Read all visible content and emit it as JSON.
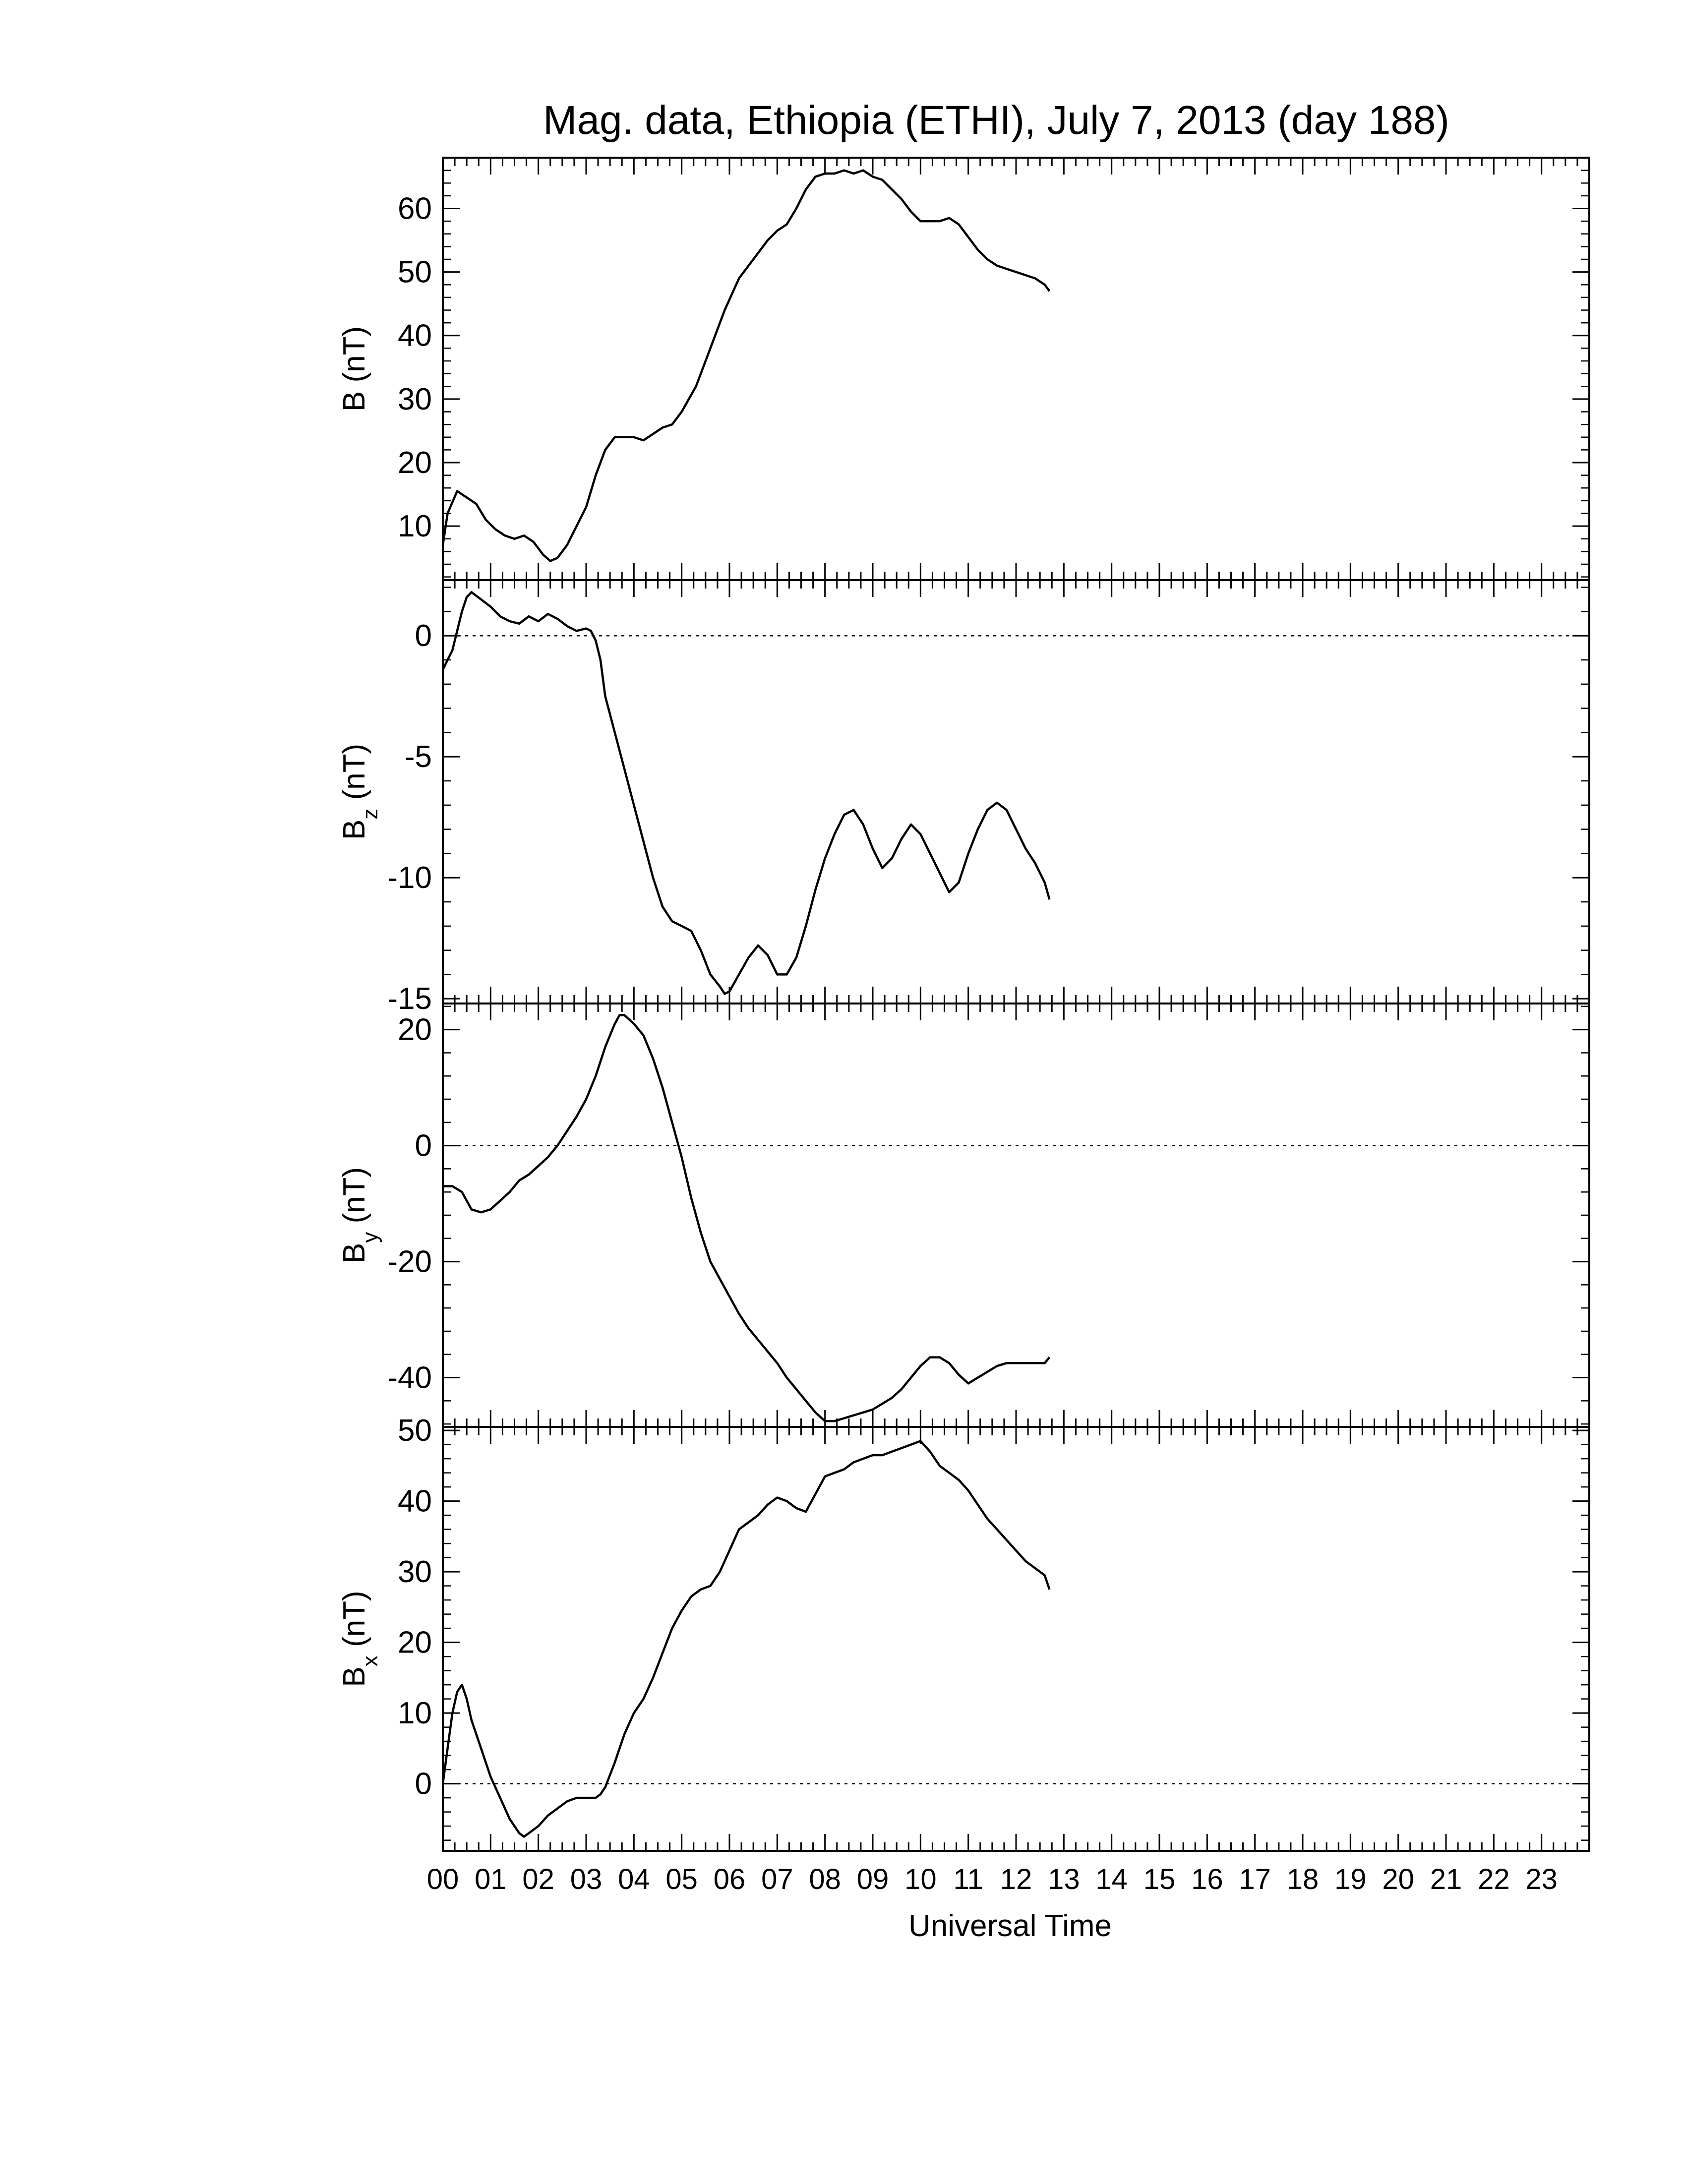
{
  "chart_data": {
    "type": "line",
    "title": "Mag. data, Ethiopia (ETHI), July 7, 2013 (day 188)",
    "xlabel": "Universal Time",
    "xlim": [
      0,
      24
    ],
    "x_tick_labels": [
      "00",
      "01",
      "02",
      "03",
      "04",
      "05",
      "06",
      "07",
      "08",
      "09",
      "10",
      "11",
      "12",
      "13",
      "14",
      "15",
      "16",
      "17",
      "18",
      "19",
      "20",
      "21",
      "22",
      "23"
    ],
    "panels": [
      {
        "id": "B",
        "ylabel_main": "B",
        "ylabel_sub": "",
        "ylabel_unit": "(nT)",
        "ylim": [
          1.5,
          68
        ],
        "yticks": [
          10,
          20,
          30,
          40,
          50,
          60
        ],
        "ytick_labels": [
          "10",
          "20",
          "30",
          "40",
          "50",
          "60"
        ],
        "zero_line": false,
        "x": [
          0.0,
          0.1,
          0.3,
          0.5,
          0.7,
          0.9,
          1.1,
          1.3,
          1.5,
          1.7,
          1.9,
          2.1,
          2.25,
          2.4,
          2.6,
          2.8,
          3.0,
          3.2,
          3.4,
          3.6,
          3.8,
          4.0,
          4.2,
          4.4,
          4.6,
          4.8,
          5.0,
          5.3,
          5.6,
          5.9,
          6.2,
          6.5,
          6.8,
          7.0,
          7.2,
          7.4,
          7.6,
          7.8,
          8.0,
          8.2,
          8.4,
          8.6,
          8.8,
          9.0,
          9.2,
          9.4,
          9.6,
          9.8,
          10.0,
          10.2,
          10.4,
          10.6,
          10.8,
          11.0,
          11.2,
          11.4,
          11.6,
          11.8,
          12.0,
          12.2,
          12.4,
          12.6,
          12.7
        ],
        "y": [
          7,
          12,
          15.5,
          14.5,
          13.5,
          11,
          9.5,
          8.5,
          8,
          8.5,
          7.5,
          5.5,
          4.5,
          5,
          7,
          10,
          13,
          18,
          22,
          24,
          24,
          24,
          23.5,
          24.5,
          25.5,
          26,
          28,
          32,
          38,
          44,
          49,
          52,
          55,
          56.5,
          57.5,
          60,
          63,
          65,
          65.5,
          65.5,
          66,
          65.5,
          66,
          65,
          64.5,
          63,
          61.5,
          59.5,
          58,
          58,
          58,
          58.5,
          57.5,
          55.5,
          53.5,
          52,
          51,
          50.5,
          50,
          49.5,
          49,
          48,
          47
        ]
      },
      {
        "id": "Bz",
        "ylabel_main": "B",
        "ylabel_sub": "z",
        "ylabel_unit": "(nT)",
        "ylim": [
          -15.2,
          2.3
        ],
        "yticks": [
          0,
          -5,
          -10,
          -15
        ],
        "ytick_labels": [
          "0",
          "-5",
          "-10",
          "-15"
        ],
        "zero_line": true,
        "x": [
          0.0,
          0.1,
          0.2,
          0.3,
          0.4,
          0.5,
          0.6,
          0.8,
          1.0,
          1.2,
          1.4,
          1.6,
          1.8,
          2.0,
          2.2,
          2.4,
          2.6,
          2.8,
          3.0,
          3.1,
          3.2,
          3.3,
          3.4,
          3.6,
          3.8,
          4.0,
          4.2,
          4.4,
          4.6,
          4.8,
          5.0,
          5.2,
          5.4,
          5.6,
          5.8,
          5.9,
          6.0,
          6.2,
          6.4,
          6.6,
          6.8,
          7.0,
          7.2,
          7.4,
          7.6,
          7.8,
          8.0,
          8.2,
          8.4,
          8.6,
          8.8,
          9.0,
          9.2,
          9.4,
          9.6,
          9.8,
          10.0,
          10.2,
          10.4,
          10.6,
          10.8,
          11.0,
          11.2,
          11.4,
          11.6,
          11.8,
          12.0,
          12.2,
          12.4,
          12.6,
          12.7
        ],
        "y": [
          -1.4,
          -1.0,
          -0.6,
          0.2,
          1.0,
          1.6,
          1.8,
          1.5,
          1.2,
          0.8,
          0.6,
          0.5,
          0.8,
          0.6,
          0.9,
          0.7,
          0.4,
          0.2,
          0.3,
          0.2,
          -0.2,
          -1.0,
          -2.5,
          -4.0,
          -5.5,
          -7.0,
          -8.5,
          -10.0,
          -11.2,
          -11.8,
          -12.0,
          -12.2,
          -13.0,
          -14.0,
          -14.5,
          -14.8,
          -14.7,
          -14.0,
          -13.3,
          -12.8,
          -13.2,
          -14.0,
          -14.0,
          -13.3,
          -12.0,
          -10.5,
          -9.2,
          -8.2,
          -7.4,
          -7.2,
          -7.8,
          -8.8,
          -9.6,
          -9.2,
          -8.4,
          -7.8,
          -8.2,
          -9.0,
          -9.8,
          -10.6,
          -10.2,
          -9.0,
          -8.0,
          -7.2,
          -6.9,
          -7.2,
          -8.0,
          -8.8,
          -9.4,
          -10.2,
          -10.9
        ]
      },
      {
        "id": "By",
        "ylabel_main": "B",
        "ylabel_sub": "y",
        "ylabel_unit": "(nT)",
        "ylim": [
          -48.5,
          24.5
        ],
        "yticks": [
          20,
          0,
          -20,
          -40
        ],
        "ytick_labels": [
          "20",
          "0",
          "-20",
          "-40"
        ],
        "zero_line": true,
        "x": [
          0.0,
          0.1,
          0.2,
          0.4,
          0.6,
          0.8,
          1.0,
          1.2,
          1.4,
          1.6,
          1.8,
          2.0,
          2.2,
          2.4,
          2.6,
          2.8,
          3.0,
          3.2,
          3.4,
          3.6,
          3.7,
          3.8,
          4.0,
          4.2,
          4.4,
          4.6,
          4.8,
          5.0,
          5.2,
          5.4,
          5.6,
          5.8,
          6.0,
          6.2,
          6.4,
          6.6,
          6.8,
          7.0,
          7.2,
          7.4,
          7.6,
          7.8,
          8.0,
          8.2,
          8.4,
          8.6,
          8.8,
          9.0,
          9.2,
          9.4,
          9.6,
          9.8,
          10.0,
          10.2,
          10.4,
          10.6,
          10.8,
          11.0,
          11.2,
          11.4,
          11.6,
          11.8,
          12.0,
          12.2,
          12.4,
          12.6,
          12.7
        ],
        "y": [
          -7,
          -7,
          -7,
          -8,
          -11,
          -11.5,
          -11,
          -9.5,
          -8,
          -6,
          -5,
          -3.5,
          -2,
          0,
          2.5,
          5,
          8,
          12,
          17,
          21,
          22.5,
          22.5,
          21,
          19,
          15,
          10,
          4,
          -2,
          -9,
          -15,
          -20,
          -23,
          -26,
          -29,
          -31.5,
          -33.5,
          -35.5,
          -37.5,
          -40,
          -42,
          -44,
          -46,
          -47.5,
          -47.5,
          -47,
          -46.5,
          -46,
          -45.5,
          -44.5,
          -43.5,
          -42,
          -40,
          -38,
          -36.5,
          -36.5,
          -37.5,
          -39.5,
          -41,
          -40,
          -39,
          -38,
          -37.5,
          -37.5,
          -37.5,
          -37.5,
          -37.5,
          -36.5
        ]
      },
      {
        "id": "Bx",
        "ylabel_main": "B",
        "ylabel_sub": "x",
        "ylabel_unit": "(nT)",
        "ylim": [
          -9.5,
          50.5
        ],
        "yticks": [
          0,
          10,
          20,
          30,
          40,
          50
        ],
        "ytick_labels": [
          "0",
          "10",
          "20",
          "30",
          "40",
          "50"
        ],
        "zero_line": true,
        "x": [
          0.0,
          0.1,
          0.2,
          0.3,
          0.4,
          0.5,
          0.6,
          0.8,
          1.0,
          1.2,
          1.4,
          1.6,
          1.7,
          1.8,
          2.0,
          2.2,
          2.4,
          2.6,
          2.8,
          3.0,
          3.2,
          3.3,
          3.4,
          3.6,
          3.8,
          4.0,
          4.2,
          4.4,
          4.6,
          4.8,
          5.0,
          5.2,
          5.4,
          5.6,
          5.8,
          6.0,
          6.2,
          6.4,
          6.6,
          6.8,
          7.0,
          7.2,
          7.4,
          7.6,
          7.8,
          8.0,
          8.2,
          8.4,
          8.6,
          8.8,
          9.0,
          9.2,
          9.4,
          9.6,
          9.8,
          10.0,
          10.2,
          10.4,
          10.6,
          10.8,
          11.0,
          11.2,
          11.4,
          11.6,
          11.8,
          12.0,
          12.2,
          12.4,
          12.6,
          12.7
        ],
        "y": [
          0,
          5,
          10,
          13,
          14,
          12,
          9,
          5,
          1,
          -2,
          -5,
          -7,
          -7.5,
          -7,
          -6,
          -4.5,
          -3.5,
          -2.5,
          -2,
          -2,
          -2,
          -1.5,
          -0.5,
          3,
          7,
          10,
          12,
          15,
          18.5,
          22,
          24.5,
          26.5,
          27.5,
          28,
          30,
          33,
          36,
          37,
          38,
          39.5,
          40.5,
          40,
          39,
          38.5,
          41,
          43.5,
          44,
          44.5,
          45.5,
          46,
          46.5,
          46.5,
          47,
          47.5,
          48,
          48.5,
          47,
          45,
          44,
          43,
          41.5,
          39.5,
          37.5,
          36,
          34.5,
          33,
          31.5,
          30.5,
          29.5,
          27.5
        ]
      }
    ]
  }
}
